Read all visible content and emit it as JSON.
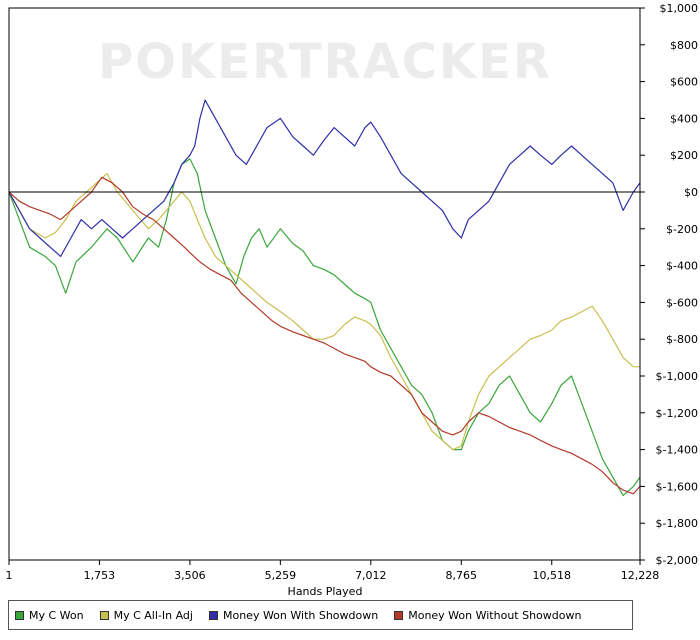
{
  "chart_data": {
    "type": "line",
    "watermark": "POKERTRACKER",
    "xlabel": "Hands Played",
    "ylabel": "",
    "xlim": [
      1,
      12228
    ],
    "ylim": [
      -2000,
      1000
    ],
    "x_ticks": [
      1,
      1753,
      3506,
      5259,
      7012,
      8765,
      10518,
      12228
    ],
    "x_tick_labels": [
      "1",
      "1,753",
      "3,506",
      "5,259",
      "7,012",
      "8,765",
      "10,518",
      "12,228"
    ],
    "y_ticks": [
      1000,
      800,
      600,
      400,
      200,
      0,
      -200,
      -400,
      -600,
      -800,
      -1000,
      -1200,
      -1400,
      -1600,
      -1800,
      -2000
    ],
    "y_tick_labels": [
      "$1,000",
      "$800",
      "$600",
      "$400",
      "$200",
      "$0",
      "$-200",
      "$-400",
      "$-600",
      "$-800",
      "$-1,000",
      "$-1,200",
      "$-1,400",
      "$-1,600",
      "$-1,800",
      "$-2,000"
    ],
    "grid": false,
    "zero_line": true,
    "legend_position": "bottom",
    "series": [
      {
        "name": "My C Won",
        "color": "#3aa63a",
        "x": [
          1,
          200,
          400,
          700,
          900,
          1100,
          1300,
          1600,
          1900,
          2100,
          2400,
          2700,
          2900,
          3050,
          3200,
          3350,
          3506,
          3650,
          3800,
          4000,
          4200,
          4400,
          4550,
          4700,
          4850,
          5000,
          5259,
          5500,
          5700,
          5900,
          6100,
          6300,
          6500,
          6700,
          6900,
          7012,
          7200,
          7400,
          7600,
          7800,
          8000,
          8200,
          8400,
          8600,
          8765,
          8900,
          9100,
          9300,
          9500,
          9700,
          9900,
          10100,
          10300,
          10518,
          10700,
          10900,
          11100,
          11300,
          11500,
          11700,
          11900,
          12100,
          12228
        ],
        "y": [
          0,
          -150,
          -300,
          -350,
          -400,
          -550,
          -380,
          -300,
          -200,
          -250,
          -380,
          -250,
          -300,
          -150,
          50,
          150,
          180,
          100,
          -100,
          -250,
          -400,
          -500,
          -350,
          -250,
          -200,
          -300,
          -200,
          -280,
          -320,
          -400,
          -420,
          -450,
          -500,
          -550,
          -580,
          -600,
          -750,
          -850,
          -950,
          -1050,
          -1100,
          -1200,
          -1350,
          -1400,
          -1400,
          -1300,
          -1200,
          -1150,
          -1050,
          -1000,
          -1100,
          -1200,
          -1250,
          -1150,
          -1050,
          -1000,
          -1150,
          -1300,
          -1450,
          -1550,
          -1650,
          -1600,
          -1550
        ]
      },
      {
        "name": "My C All-In Adj",
        "color": "#c8bf50",
        "x": [
          1,
          200,
          400,
          700,
          900,
          1100,
          1300,
          1500,
          1700,
          1900,
          2100,
          2400,
          2700,
          2900,
          3050,
          3200,
          3350,
          3506,
          3650,
          3800,
          4000,
          4200,
          4400,
          4600,
          4800,
          5000,
          5259,
          5500,
          5700,
          5900,
          6100,
          6300,
          6500,
          6700,
          6900,
          7012,
          7200,
          7400,
          7600,
          7800,
          8000,
          8200,
          8400,
          8600,
          8765,
          8900,
          9100,
          9300,
          9500,
          9700,
          9900,
          10100,
          10300,
          10518,
          10700,
          10900,
          11100,
          11300,
          11500,
          11700,
          11900,
          12100,
          12228
        ],
        "y": [
          0,
          -100,
          -200,
          -250,
          -220,
          -150,
          -50,
          0,
          50,
          100,
          0,
          -100,
          -200,
          -150,
          -100,
          -50,
          0,
          -50,
          -150,
          -250,
          -350,
          -400,
          -450,
          -500,
          -550,
          -600,
          -650,
          -700,
          -750,
          -800,
          -800,
          -780,
          -720,
          -680,
          -700,
          -720,
          -780,
          -900,
          -1000,
          -1100,
          -1200,
          -1300,
          -1350,
          -1400,
          -1380,
          -1250,
          -1100,
          -1000,
          -950,
          -900,
          -850,
          -800,
          -780,
          -750,
          -700,
          -680,
          -650,
          -620,
          -700,
          -800,
          -900,
          -950,
          -950
        ]
      },
      {
        "name": "Money Won With Showdown",
        "color": "#2e2fa8",
        "x": [
          1,
          200,
          400,
          600,
          800,
          1000,
          1200,
          1400,
          1600,
          1800,
          2000,
          2200,
          2400,
          2600,
          2800,
          3000,
          3200,
          3350,
          3506,
          3600,
          3700,
          3800,
          3900,
          4000,
          4200,
          4400,
          4600,
          4800,
          5000,
          5259,
          5500,
          5700,
          5900,
          6100,
          6300,
          6500,
          6700,
          6900,
          7012,
          7200,
          7400,
          7600,
          7800,
          8000,
          8200,
          8400,
          8600,
          8765,
          8900,
          9100,
          9300,
          9500,
          9700,
          9900,
          10100,
          10300,
          10518,
          10700,
          10900,
          11100,
          11300,
          11500,
          11700,
          11900,
          12100,
          12228
        ],
        "y": [
          0,
          -100,
          -200,
          -250,
          -300,
          -350,
          -250,
          -150,
          -200,
          -150,
          -200,
          -250,
          -200,
          -150,
          -100,
          -50,
          50,
          150,
          200,
          250,
          400,
          500,
          450,
          400,
          300,
          200,
          150,
          250,
          350,
          400,
          300,
          250,
          200,
          280,
          350,
          300,
          250,
          350,
          380,
          300,
          200,
          100,
          50,
          0,
          -50,
          -100,
          -200,
          -250,
          -150,
          -100,
          -50,
          50,
          150,
          200,
          250,
          200,
          150,
          200,
          250,
          200,
          150,
          100,
          50,
          -100,
          0,
          50
        ]
      },
      {
        "name": "Money Won Without Showdown",
        "color": "#b23a2a",
        "x": [
          1,
          200,
          400,
          600,
          800,
          1000,
          1200,
          1400,
          1600,
          1800,
          2000,
          2200,
          2400,
          2600,
          2800,
          3000,
          3200,
          3400,
          3506,
          3700,
          3900,
          4100,
          4300,
          4500,
          4700,
          4900,
          5100,
          5259,
          5500,
          5700,
          5900,
          6100,
          6300,
          6500,
          6700,
          6900,
          7012,
          7200,
          7400,
          7600,
          7800,
          8000,
          8200,
          8400,
          8600,
          8765,
          8900,
          9100,
          9300,
          9500,
          9700,
          9900,
          10100,
          10300,
          10518,
          10700,
          10900,
          11100,
          11300,
          11500,
          11700,
          11900,
          12100,
          12228
        ],
        "y": [
          0,
          -50,
          -80,
          -100,
          -120,
          -150,
          -100,
          -50,
          0,
          80,
          50,
          0,
          -80,
          -120,
          -150,
          -200,
          -250,
          -300,
          -330,
          -380,
          -420,
          -450,
          -480,
          -550,
          -600,
          -650,
          -700,
          -730,
          -760,
          -780,
          -800,
          -820,
          -850,
          -880,
          -900,
          -920,
          -950,
          -980,
          -1000,
          -1050,
          -1100,
          -1200,
          -1250,
          -1300,
          -1320,
          -1300,
          -1250,
          -1200,
          -1220,
          -1250,
          -1280,
          -1300,
          -1320,
          -1350,
          -1380,
          -1400,
          -1420,
          -1450,
          -1480,
          -1520,
          -1580,
          -1620,
          -1640,
          -1600
        ]
      }
    ]
  }
}
